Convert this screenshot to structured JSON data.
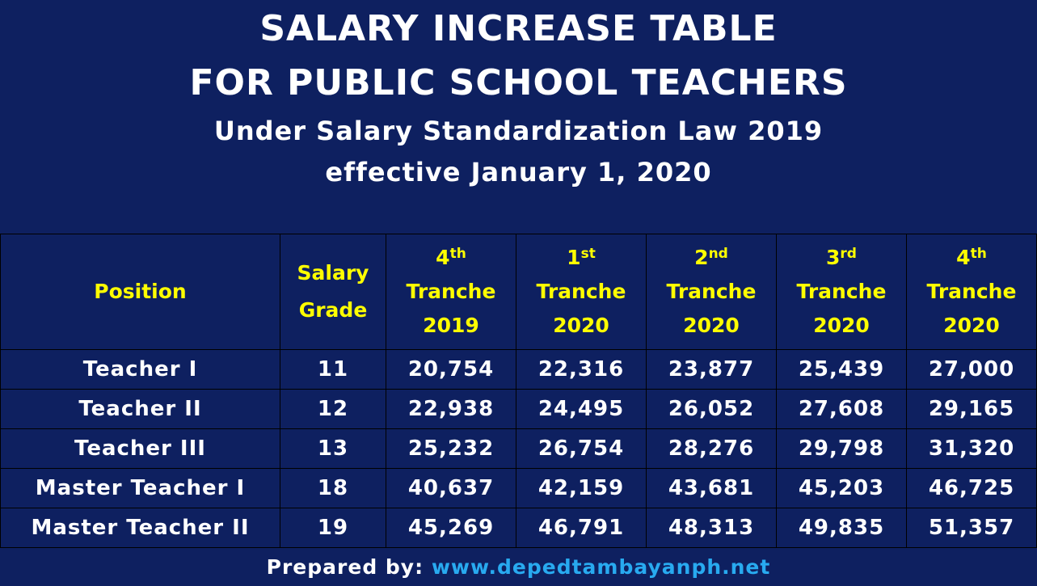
{
  "title": {
    "line1": "SALARY INCREASE TABLE",
    "line2": "FOR PUBLIC SCHOOL TEACHERS",
    "line3": "Under Salary Standardization Law 2019",
    "line4": "effective January 1, 2020"
  },
  "table": {
    "headers": {
      "position": "Position",
      "grade_line1": "Salary",
      "grade_line2": "Grade",
      "tranches": [
        {
          "num": "4",
          "suffix": "th",
          "word": "Tranche",
          "year": "2019"
        },
        {
          "num": "1",
          "suffix": "st",
          "word": "Tranche",
          "year": "2020"
        },
        {
          "num": "2",
          "suffix": "nd",
          "word": "Tranche",
          "year": "2020"
        },
        {
          "num": "3",
          "suffix": "rd",
          "word": "Tranche",
          "year": "2020"
        },
        {
          "num": "4",
          "suffix": "th",
          "word": "Tranche",
          "year": "2020"
        }
      ]
    },
    "rows": [
      {
        "position": "Teacher I",
        "grade": "11",
        "values": [
          "20,754",
          "22,316",
          "23,877",
          "25,439",
          "27,000"
        ]
      },
      {
        "position": "Teacher II",
        "grade": "12",
        "values": [
          "22,938",
          "24,495",
          "26,052",
          "27,608",
          "29,165"
        ]
      },
      {
        "position": "Teacher III",
        "grade": "13",
        "values": [
          "25,232",
          "26,754",
          "28,276",
          "29,798",
          "31,320"
        ]
      },
      {
        "position": "Master Teacher I",
        "grade": "18",
        "values": [
          "40,637",
          "42,159",
          "43,681",
          "45,203",
          "46,725"
        ]
      },
      {
        "position": "Master Teacher II",
        "grade": "19",
        "values": [
          "45,269",
          "46,791",
          "48,313",
          "49,835",
          "51,357"
        ]
      }
    ]
  },
  "footer": {
    "prepared_label": "Prepared by:",
    "url": "www.depedtambayanph.net"
  },
  "colors": {
    "background": "#0e2060",
    "header_text": "#ffff00",
    "body_text": "#ffffff",
    "link": "#28aaf0"
  }
}
